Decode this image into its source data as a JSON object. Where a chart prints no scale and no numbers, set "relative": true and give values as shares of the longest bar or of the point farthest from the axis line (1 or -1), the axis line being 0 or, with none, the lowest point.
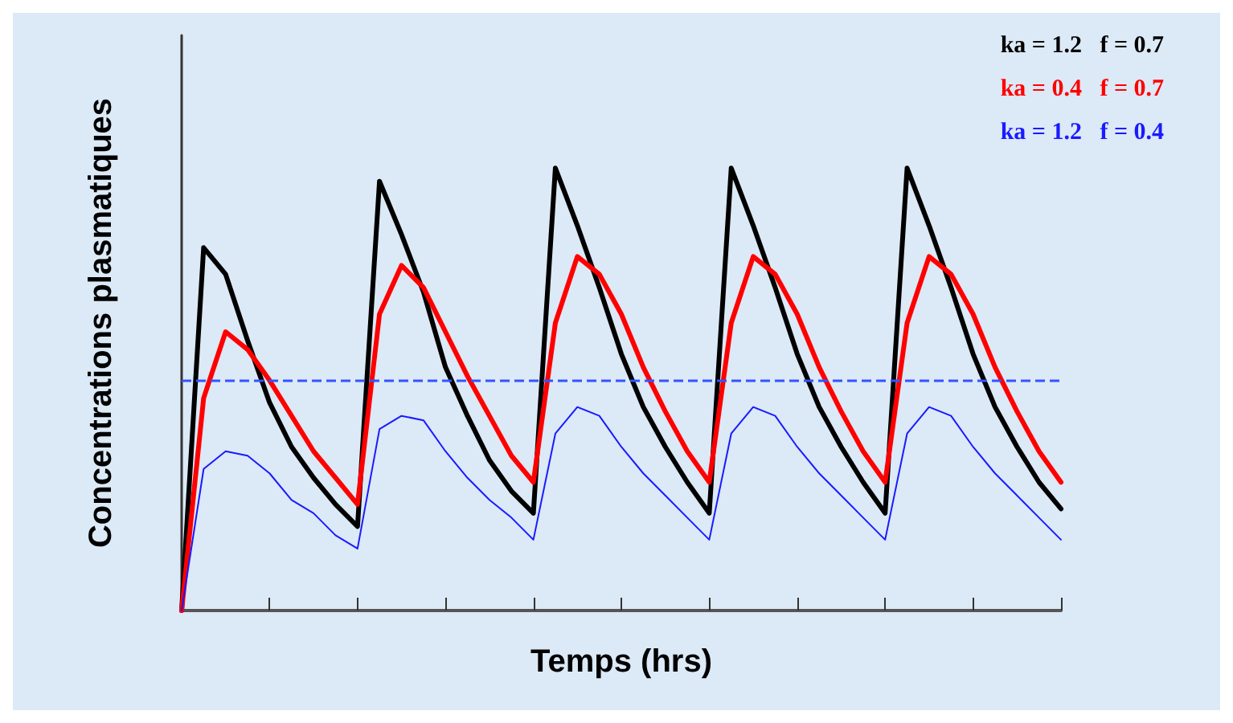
{
  "chart_data": {
    "type": "line",
    "relative": true,
    "xlabel": "Temps (hrs)",
    "ylabel": "Concentrations plasmatiques",
    "categories": [
      null,
      null,
      null,
      null,
      null,
      null,
      null,
      null,
      null,
      null,
      null,
      null,
      null,
      null,
      null,
      null,
      null,
      null,
      null,
      null,
      null,
      null,
      null,
      null,
      null,
      null,
      null,
      null,
      null,
      null,
      null,
      null,
      null,
      null,
      null,
      null,
      null,
      null,
      null,
      null,
      null
    ],
    "series": [
      {
        "name": "ka = 1.2   f = 0.7",
        "color": "#000000",
        "values": [
          0,
          0.82,
          0.76,
          0.61,
          0.47,
          0.37,
          0.3,
          0.24,
          0.19,
          0.97,
          0.85,
          0.72,
          0.55,
          0.44,
          0.34,
          0.27,
          0.22,
          1.0,
          0.87,
          0.73,
          0.58,
          0.46,
          0.37,
          0.29,
          0.22,
          1.0,
          0.87,
          0.73,
          0.58,
          0.46,
          0.37,
          0.29,
          0.22,
          1.0,
          0.87,
          0.73,
          0.58,
          0.46,
          0.37,
          0.29,
          0.23
        ]
      },
      {
        "name": "ka = 0.4   f = 0.7",
        "color": "#ff0000",
        "values": [
          0,
          0.48,
          0.63,
          0.59,
          0.52,
          0.44,
          0.36,
          0.3,
          0.24,
          0.67,
          0.78,
          0.73,
          0.63,
          0.53,
          0.44,
          0.35,
          0.29,
          0.65,
          0.8,
          0.76,
          0.67,
          0.55,
          0.45,
          0.36,
          0.29,
          0.65,
          0.8,
          0.76,
          0.67,
          0.55,
          0.45,
          0.36,
          0.29,
          0.65,
          0.8,
          0.76,
          0.67,
          0.55,
          0.45,
          0.36,
          0.29
        ]
      },
      {
        "name": "ka = 1.2   f = 0.4",
        "color": "#1a1aff",
        "values": [
          0,
          0.32,
          0.36,
          0.35,
          0.31,
          0.25,
          0.22,
          0.17,
          0.14,
          0.41,
          0.44,
          0.43,
          0.36,
          0.3,
          0.25,
          0.21,
          0.16,
          0.4,
          0.46,
          0.44,
          0.37,
          0.31,
          0.26,
          0.21,
          0.16,
          0.4,
          0.46,
          0.44,
          0.37,
          0.31,
          0.26,
          0.21,
          0.16,
          0.4,
          0.46,
          0.44,
          0.37,
          0.31,
          0.26,
          0.21,
          0.16
        ]
      }
    ],
    "ref_lines": [
      {
        "axis": "y",
        "value": 0.52,
        "color": "#3355ff",
        "line_style": "dashed"
      }
    ],
    "grid": false,
    "legend": "top right",
    "marker": "none",
    "line_style": "solid"
  }
}
